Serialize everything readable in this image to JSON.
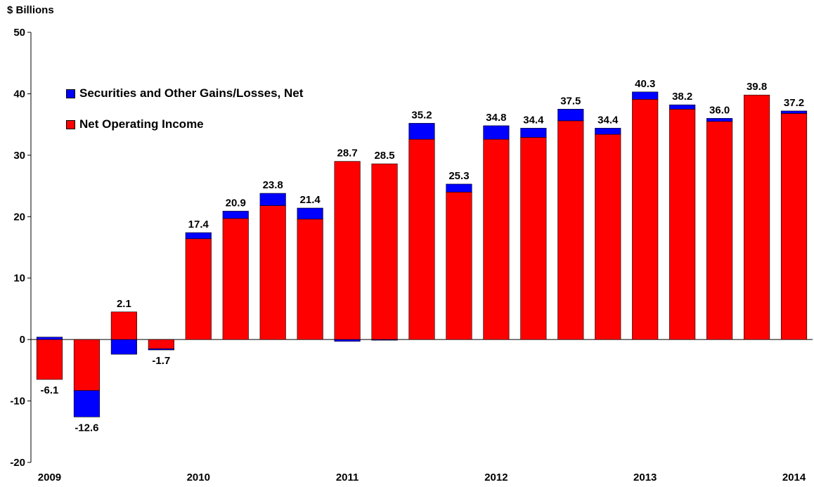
{
  "chart_data": {
    "type": "bar",
    "stacked": true,
    "ylabel": "$ Billions",
    "ylim": [
      -20,
      50
    ],
    "yticks": [
      50,
      40,
      30,
      20,
      10,
      0,
      -10,
      -20
    ],
    "x_tick_labels": [
      "2009",
      "2010",
      "2011",
      "2012",
      "2013",
      "2014"
    ],
    "categories": [
      "2009 Q1",
      "2009 Q2",
      "2009 Q3",
      "2009 Q4",
      "2010 Q1",
      "2010 Q2",
      "2010 Q3",
      "2010 Q4",
      "2011 Q1",
      "2011 Q2",
      "2011 Q3",
      "2011 Q4",
      "2012 Q1",
      "2012 Q2",
      "2012 Q3",
      "2012 Q4",
      "2013 Q1",
      "2013 Q2",
      "2013 Q3",
      "2013 Q4",
      "2014 Q1"
    ],
    "series": [
      {
        "name": "Net Operating Income",
        "color": "#ff0000",
        "values": [
          -6.5,
          -8.3,
          4.5,
          -1.5,
          16.4,
          19.7,
          21.8,
          19.6,
          29.0,
          28.6,
          32.6,
          24.0,
          32.6,
          32.9,
          35.6,
          33.4,
          39.1,
          37.5,
          35.5,
          39.8,
          36.8
        ]
      },
      {
        "name": "Securities and Other Gains/Losses, Net",
        "color": "#0000ff",
        "values": [
          0.4,
          -4.3,
          -2.4,
          -0.2,
          1.0,
          1.2,
          2.0,
          1.8,
          -0.3,
          -0.1,
          2.6,
          1.3,
          2.2,
          1.5,
          1.9,
          1.0,
          1.2,
          0.7,
          0.5,
          0.0,
          0.4
        ]
      }
    ],
    "totals": [
      -6.1,
      -12.6,
      2.1,
      -1.7,
      17.4,
      20.9,
      23.8,
      21.4,
      28.7,
      28.5,
      35.2,
      25.3,
      34.8,
      34.4,
      37.5,
      34.4,
      40.3,
      38.2,
      36.0,
      39.8,
      37.2
    ],
    "total_labels": [
      "-6.1",
      "-12.6",
      "2.1",
      "-1.7",
      "17.4",
      "20.9",
      "23.8",
      "21.4",
      "28.7",
      "28.5",
      "35.2",
      "25.3",
      "34.8",
      "34.4",
      "37.5",
      "34.4",
      "40.3",
      "38.2",
      "36.0",
      "39.8",
      "37.2"
    ],
    "legend": [
      {
        "label": "Securities and Other Gains/Losses, Net",
        "color": "#0000ff"
      },
      {
        "label": "Net Operating Income",
        "color": "#ff0000"
      }
    ],
    "legend_placement": "top-left",
    "grid": false
  }
}
